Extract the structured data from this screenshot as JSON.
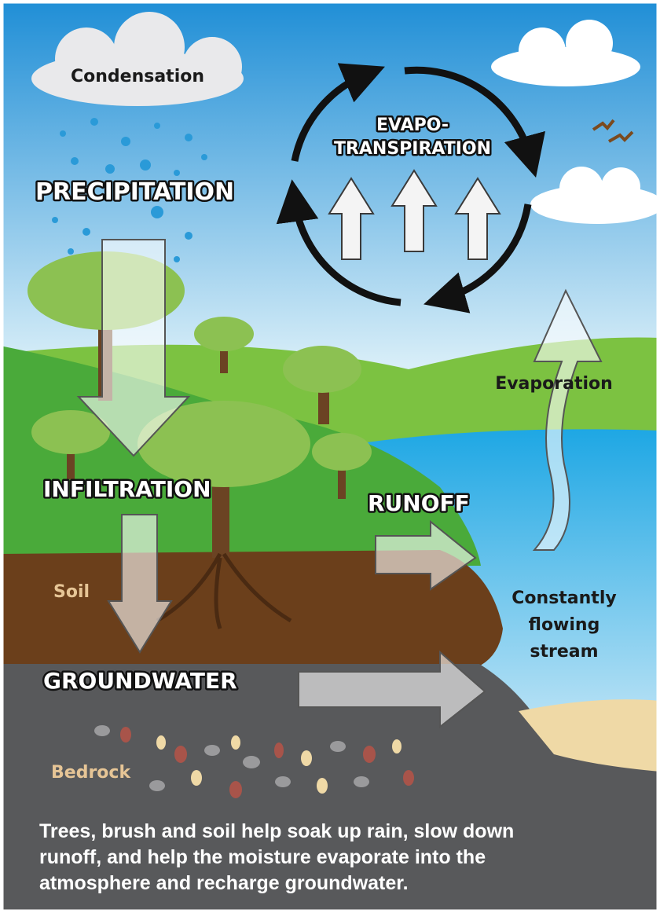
{
  "labels": {
    "condensation": "Condensation",
    "precipitation": "PRECIPITATION",
    "evapotranspiration": [
      "EVAPO-",
      "TRANSPIRATION"
    ],
    "evaporation": "Evaporation",
    "infiltration": "INFILTRATION",
    "runoff": "RUNOFF",
    "soil": "Soil",
    "stream": [
      "Constantly",
      "flowing",
      "stream"
    ],
    "groundwater": "GROUNDWATER",
    "bedrock": "Bedrock"
  },
  "caption": [
    "Trees, brush and soil help soak up rain, slow down",
    "runoff, and help the moisture evaporate into the",
    "atmosphere and recharge groundwater."
  ]
}
